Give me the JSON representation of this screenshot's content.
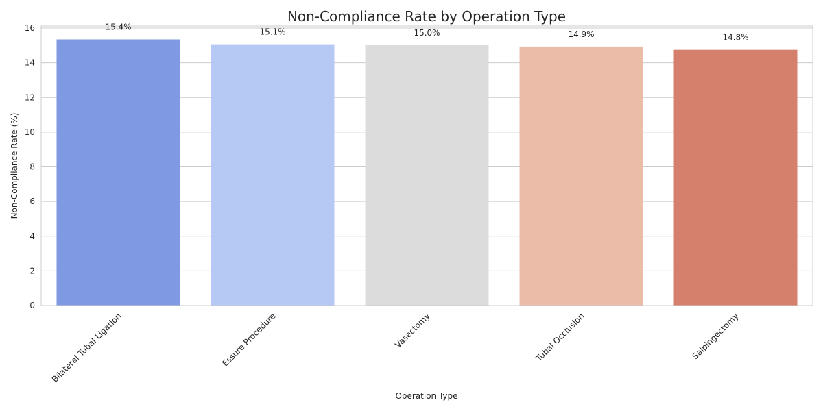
{
  "chart_data": {
    "type": "bar",
    "title": "Non-Compliance Rate by Operation Type",
    "xlabel": "Operation Type",
    "ylabel": "Non-Compliance Rate (%)",
    "categories": [
      "Bilateral Tubal Ligation",
      "Essure Procedure",
      "Vasectomy",
      "Tubal Occlusion",
      "Salpingectomy"
    ],
    "values": [
      15.35,
      15.07,
      15.02,
      14.94,
      14.75
    ],
    "data_labels": [
      "15.4%",
      "15.1%",
      "15.0%",
      "14.9%",
      "14.8%"
    ],
    "colors": [
      "#7f9ae2",
      "#b5c9f4",
      "#dcdcdc",
      "#ebbca7",
      "#d5806d"
    ],
    "ylim": [
      0,
      16.12
    ],
    "yticks": [
      0,
      2,
      4,
      6,
      8,
      10,
      12,
      14,
      16
    ],
    "ytick_labels": [
      "0",
      "2",
      "4",
      "6",
      "8",
      "10",
      "12",
      "14",
      "16"
    ],
    "grid": "y",
    "legend": "none"
  }
}
